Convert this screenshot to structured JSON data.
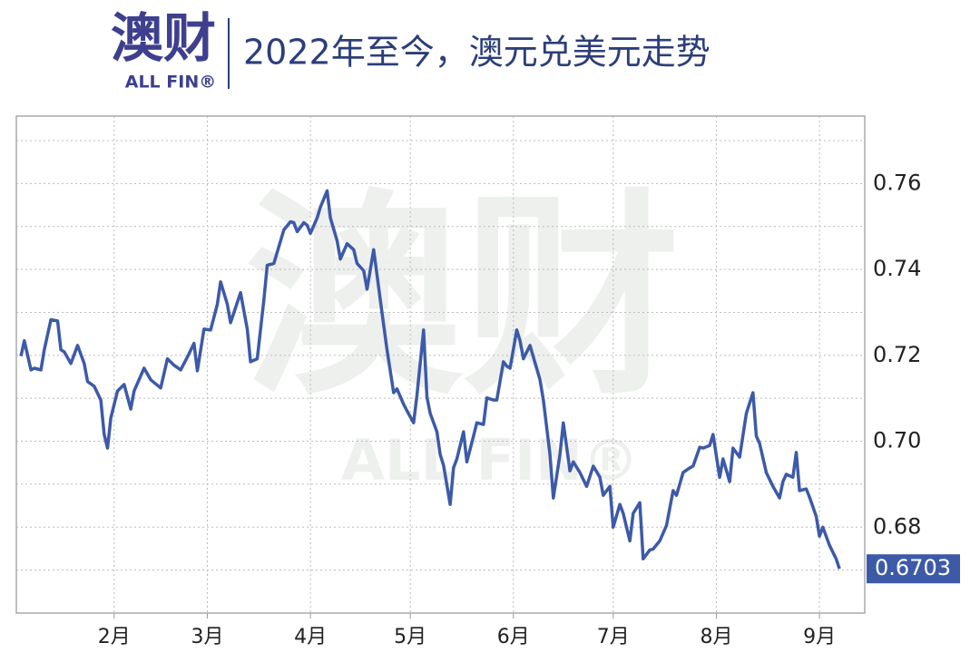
{
  "logo": {
    "name": "澳财",
    "sub": "ALL FIN®"
  },
  "chart_data": {
    "type": "line",
    "title": "2022年至今，澳元兑美元走势",
    "watermark": {
      "name": "澳财",
      "sub": "ALL FIN®"
    },
    "x": [
      4,
      5,
      7,
      8,
      10,
      11,
      13,
      15,
      16,
      17,
      19,
      21,
      23,
      24,
      26,
      28,
      29,
      30,
      31,
      33,
      35,
      37,
      38,
      41,
      43,
      46,
      48,
      50,
      52,
      54,
      56,
      57,
      59,
      61,
      63,
      64,
      66,
      67,
      70,
      72,
      73,
      75,
      77,
      78,
      80,
      83,
      85,
      86,
      87,
      89,
      90,
      91,
      93,
      94,
      96,
      97,
      99,
      100,
      102,
      104,
      105,
      107,
      108,
      110,
      112,
      114,
      116,
      117,
      119,
      120,
      122,
      123,
      125,
      126,
      127,
      129,
      130,
      131,
      133,
      134,
      135,
      137,
      138,
      140,
      141,
      143,
      144,
      146,
      147,
      149,
      150,
      151,
      153,
      154,
      155,
      157,
      158,
      160,
      161,
      163,
      164,
      166,
      167,
      169,
      170,
      172,
      174,
      176,
      178,
      179,
      181,
      182,
      184,
      185,
      187,
      188,
      190,
      191,
      193,
      194,
      196,
      198,
      200,
      201,
      203,
      205,
      206,
      208,
      209,
      211,
      212,
      214,
      215,
      217,
      218,
      220,
      222,
      224,
      225,
      226,
      228,
      230,
      232,
      233,
      234,
      236,
      237,
      238,
      240,
      241,
      243,
      244,
      245,
      247,
      249,
      250
    ],
    "series": [
      {
        "color": "#3d5aa8",
        "values": [
          0.7198,
          0.7234,
          0.7166,
          0.717,
          0.7166,
          0.7213,
          0.7283,
          0.728,
          0.7213,
          0.7208,
          0.7181,
          0.7223,
          0.7181,
          0.7139,
          0.7128,
          0.7096,
          0.7016,
          0.6984,
          0.7054,
          0.7117,
          0.7132,
          0.7075,
          0.7117,
          0.717,
          0.7143,
          0.7124,
          0.7192,
          0.7177,
          0.7166,
          0.7196,
          0.7228,
          0.7164,
          0.7261,
          0.7259,
          0.7319,
          0.7371,
          0.7319,
          0.7276,
          0.7346,
          0.7261,
          0.7185,
          0.7192,
          0.7329,
          0.741,
          0.7414,
          0.7492,
          0.7511,
          0.7509,
          0.7488,
          0.7509,
          0.7503,
          0.7484,
          0.752,
          0.7545,
          0.7583,
          0.752,
          0.7467,
          0.7424,
          0.746,
          0.7446,
          0.7414,
          0.7397,
          0.7354,
          0.7446,
          0.7329,
          0.7213,
          0.7113,
          0.7122,
          0.7086,
          0.7071,
          0.7043,
          0.7107,
          0.7259,
          0.7103,
          0.7065,
          0.7022,
          0.6969,
          0.6944,
          0.6853,
          0.6938,
          0.6959,
          0.7022,
          0.6952,
          0.7012,
          0.7043,
          0.7039,
          0.7101,
          0.7096,
          0.7096,
          0.7185,
          0.7175,
          0.717,
          0.7259,
          0.7234,
          0.7192,
          0.7223,
          0.7196,
          0.7143,
          0.7096,
          0.6969,
          0.6868,
          0.6969,
          0.7043,
          0.6931,
          0.6952,
          0.6927,
          0.6895,
          0.6942,
          0.6916,
          0.6874,
          0.6895,
          0.68,
          0.6853,
          0.6832,
          0.6768,
          0.6832,
          0.6857,
          0.6726,
          0.6747,
          0.6749,
          0.6768,
          0.6804,
          0.6885,
          0.6874,
          0.6927,
          0.6938,
          0.6942,
          0.6986,
          0.6984,
          0.699,
          0.7016,
          0.6916,
          0.6959,
          0.6906,
          0.6984,
          0.6963,
          0.7065,
          0.7113,
          0.7012,
          0.6995,
          0.6927,
          0.6895,
          0.6868,
          0.6906,
          0.6923,
          0.6916,
          0.6974,
          0.6885,
          0.6889,
          0.687,
          0.6825,
          0.6779,
          0.68,
          0.6758,
          0.6726,
          0.6703
        ]
      }
    ],
    "end_label": 0.6703,
    "xlim": [
      2.6,
      257.6
    ],
    "xticks": [
      {
        "value": 32,
        "label": "2月"
      },
      {
        "value": 60,
        "label": "3月"
      },
      {
        "value": 91,
        "label": "4月"
      },
      {
        "value": 121,
        "label": "5月"
      },
      {
        "value": 152,
        "label": "6月"
      },
      {
        "value": 182,
        "label": "7月"
      },
      {
        "value": 213,
        "label": "8月"
      },
      {
        "value": 244,
        "label": "9月"
      }
    ],
    "ylim": [
      0.66,
      0.7757
    ],
    "yticks": [
      0.68,
      {
        "value": 0.7,
        "label": "0.70"
      },
      0.72,
      0.74,
      0.76
    ],
    "minor_yticks": [
      0.67,
      0.69,
      0.71,
      0.73,
      0.75,
      0.77
    ],
    "grid": true
  }
}
